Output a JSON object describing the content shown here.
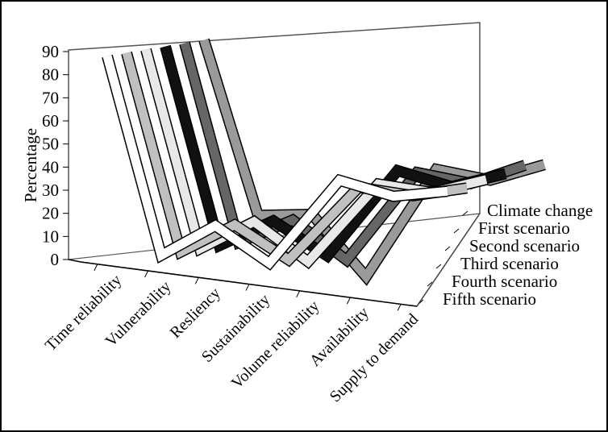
{
  "chart_data": {
    "type": "line",
    "style": "3d-ribbon",
    "title": "",
    "ylabel": "Percentage",
    "xlabel": "",
    "ylim": [
      0,
      90
    ],
    "yticks": [
      "0",
      "10",
      "20",
      "30",
      "40",
      "50",
      "60",
      "70",
      "80",
      "90"
    ],
    "categories": [
      "Time reliability",
      "Vulnerability",
      "Resliency",
      "Sustainability",
      "Volume reliability",
      "Availability",
      "Supply to demand"
    ],
    "series": [
      {
        "name": "Fifth scenario",
        "color": "#ffffff",
        "values": [
          88,
          10,
          30,
          22,
          62,
          62,
          70
        ]
      },
      {
        "name": "Fourth scenario",
        "color": "#c0c0c0",
        "values": [
          88,
          10,
          29,
          22,
          58,
          61,
          70
        ]
      },
      {
        "name": "Third scenario",
        "color": "#e8e8e8",
        "values": [
          88,
          10,
          29,
          20,
          58,
          61,
          72
        ]
      },
      {
        "name": "Second scenario",
        "color": "#111111",
        "values": [
          88,
          10,
          28,
          21,
          62,
          62,
          73
        ]
      },
      {
        "name": "First scenario",
        "color": "#666666",
        "values": [
          88,
          10,
          27,
          18,
          60,
          62,
          75
        ]
      },
      {
        "name": "Climate change",
        "color": "#9a9a9a",
        "values": [
          88,
          20,
          28,
          10,
          60,
          62,
          74
        ]
      }
    ]
  }
}
